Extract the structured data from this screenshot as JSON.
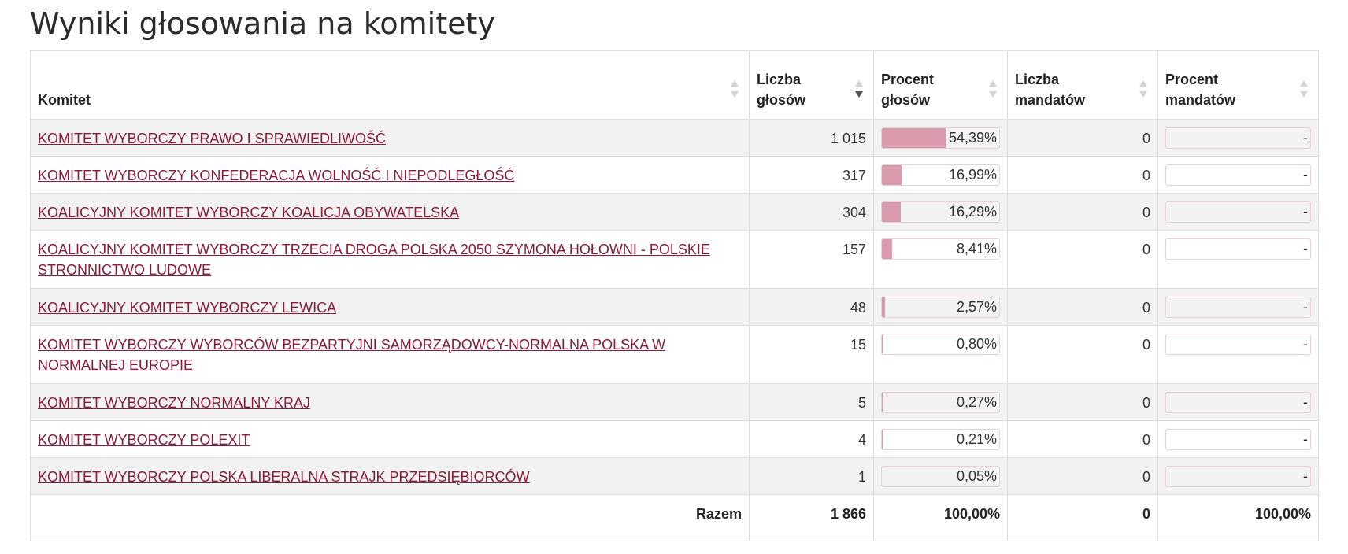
{
  "page_title": "Wyniki głosowania na komitety",
  "columns": {
    "committee": "Komitet",
    "votes": "Liczba głosów",
    "votes_pct": "Procent głosów",
    "seats": "Liczba mandatów",
    "seats_pct": "Procent mandatów"
  },
  "sorted_column": "votes",
  "colors": {
    "link": "#8a1a35",
    "bar_fill": "#d99aab",
    "row_stripe": "#f2f2f2"
  },
  "rows": [
    {
      "name": "KOMITET WYBORCZY PRAWO I SPRAWIEDLIWOŚĆ",
      "votes": "1 015",
      "votes_pct": "54,39%",
      "votes_pct_value": 54.39,
      "seats": "0",
      "seats_pct": "-",
      "seats_pct_value": 0
    },
    {
      "name": "KOMITET WYBORCZY KONFEDERACJA WOLNOŚĆ I NIEPODLEGŁOŚĆ",
      "votes": "317",
      "votes_pct": "16,99%",
      "votes_pct_value": 16.99,
      "seats": "0",
      "seats_pct": "-",
      "seats_pct_value": 0
    },
    {
      "name": "KOALICYJNY KOMITET WYBORCZY KOALICJA OBYWATELSKA",
      "votes": "304",
      "votes_pct": "16,29%",
      "votes_pct_value": 16.29,
      "seats": "0",
      "seats_pct": "-",
      "seats_pct_value": 0
    },
    {
      "name": "KOALICYJNY KOMITET WYBORCZY TRZECIA DROGA POLSKA 2050 SZYMONA HOŁOWNI - POLSKIE STRONNICTWO LUDOWE",
      "votes": "157",
      "votes_pct": "8,41%",
      "votes_pct_value": 8.41,
      "seats": "0",
      "seats_pct": "-",
      "seats_pct_value": 0
    },
    {
      "name": "KOALICYJNY KOMITET WYBORCZY LEWICA",
      "votes": "48",
      "votes_pct": "2,57%",
      "votes_pct_value": 2.57,
      "seats": "0",
      "seats_pct": "-",
      "seats_pct_value": 0
    },
    {
      "name": "KOMITET WYBORCZY WYBORCÓW BEZPARTYJNI SAMORZĄDOWCY-NORMALNA POLSKA W NORMALNEJ EUROPIE",
      "votes": "15",
      "votes_pct": "0,80%",
      "votes_pct_value": 0.8,
      "seats": "0",
      "seats_pct": "-",
      "seats_pct_value": 0
    },
    {
      "name": "KOMITET WYBORCZY NORMALNY KRAJ",
      "votes": "5",
      "votes_pct": "0,27%",
      "votes_pct_value": 0.27,
      "seats": "0",
      "seats_pct": "-",
      "seats_pct_value": 0
    },
    {
      "name": "KOMITET WYBORCZY POLEXIT",
      "votes": "4",
      "votes_pct": "0,21%",
      "votes_pct_value": 0.21,
      "seats": "0",
      "seats_pct": "-",
      "seats_pct_value": 0
    },
    {
      "name": "KOMITET WYBORCZY POLSKA LIBERALNA STRAJK PRZEDSIĘBIORCÓW",
      "votes": "1",
      "votes_pct": "0,05%",
      "votes_pct_value": 0.05,
      "seats": "0",
      "seats_pct": "-",
      "seats_pct_value": 0
    }
  ],
  "totals": {
    "label": "Razem",
    "votes": "1 866",
    "votes_pct": "100,00%",
    "seats": "0",
    "seats_pct": "100,00%"
  }
}
